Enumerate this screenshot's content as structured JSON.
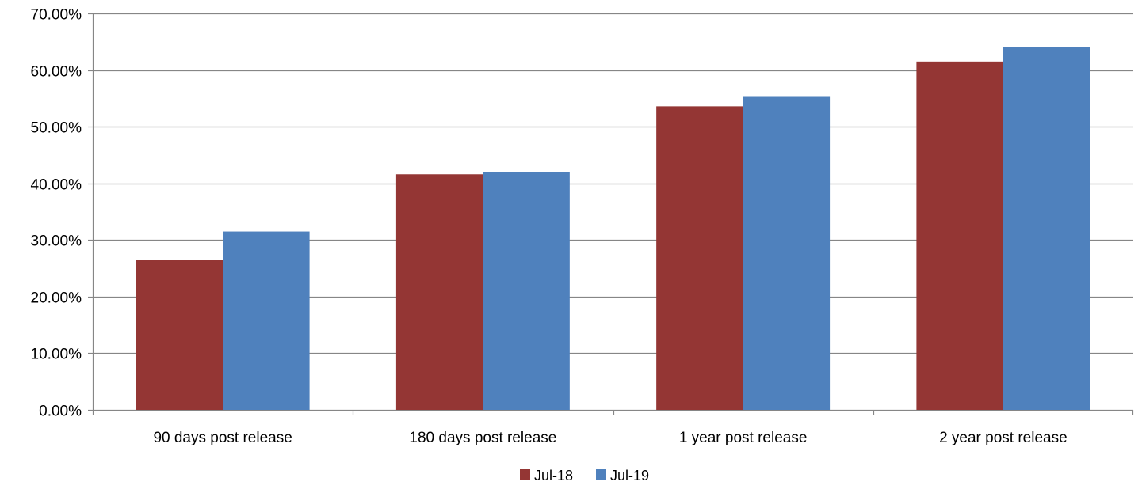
{
  "chart_data": {
    "type": "bar",
    "title": "",
    "xlabel": "",
    "ylabel": "",
    "categories": [
      "90 days post release",
      "180 days post release",
      "1 year post release",
      "2 year post release"
    ],
    "series": [
      {
        "name": "Jul-18",
        "color": "#943634",
        "values": [
          26.5,
          41.6,
          53.6,
          61.5
        ]
      },
      {
        "name": "Jul-19",
        "color": "#4f81bd",
        "values": [
          31.5,
          42.0,
          55.4,
          64.0
        ]
      }
    ],
    "ylim": [
      0,
      70
    ],
    "yticks": [
      0,
      10,
      20,
      30,
      40,
      50,
      60,
      70
    ],
    "ytick_labels": [
      "0.00%",
      "10.00%",
      "20.00%",
      "30.00%",
      "40.00%",
      "50.00%",
      "60.00%",
      "70.00%"
    ],
    "grid": true,
    "legend_position": "bottom-center"
  }
}
